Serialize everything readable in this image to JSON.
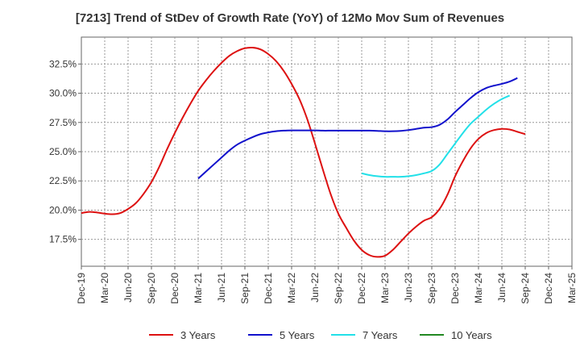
{
  "chart_data": {
    "type": "line",
    "title": "[7213]  Trend of StDev of Growth Rate (YoY) of 12Mo Mov Sum of Revenues",
    "xlabel": "",
    "ylabel": "",
    "ylim": [
      15.2,
      34.8
    ],
    "y_ticks": [
      17.5,
      20.0,
      22.5,
      25.0,
      27.5,
      30.0,
      32.5
    ],
    "y_tick_labels": [
      "17.5%",
      "20.0%",
      "22.5%",
      "25.0%",
      "27.5%",
      "30.0%",
      "32.5%"
    ],
    "x_tick_labels": [
      "Dec-19",
      "Mar-20",
      "Jun-20",
      "Sep-20",
      "Dec-20",
      "Mar-21",
      "Jun-21",
      "Sep-21",
      "Dec-21",
      "Mar-22",
      "Jun-22",
      "Sep-22",
      "Dec-22",
      "Mar-23",
      "Jun-23",
      "Sep-23",
      "Dec-23",
      "Mar-24",
      "Jun-24",
      "Sep-24",
      "Dec-24",
      "Mar-25"
    ],
    "grid": true,
    "legend_position": "bottom",
    "series": [
      {
        "name": "3 Years",
        "color": "#dd1111",
        "start_index": 0,
        "values": [
          19.75,
          19.85,
          19.8,
          19.7,
          19.65,
          19.75,
          20.1,
          20.6,
          21.4,
          22.4,
          23.7,
          25.2,
          26.6,
          27.9,
          29.1,
          30.2,
          31.1,
          31.9,
          32.6,
          33.2,
          33.6,
          33.85,
          33.9,
          33.75,
          33.35,
          32.75,
          31.9,
          30.8,
          29.5,
          27.8,
          25.7,
          23.5,
          21.4,
          19.7,
          18.5,
          17.4,
          16.6,
          16.15,
          16.0,
          16.1,
          16.6,
          17.3,
          18.0,
          18.6,
          19.1,
          19.4,
          20.1,
          21.3,
          22.9,
          24.2,
          25.3,
          26.1,
          26.6,
          26.85,
          26.95,
          26.9,
          26.7,
          26.5
        ]
      },
      {
        "name": "5 Years",
        "color": "#1111cc",
        "start_index": 15,
        "values": [
          22.7,
          23.3,
          23.9,
          24.5,
          25.1,
          25.6,
          25.95,
          26.25,
          26.5,
          26.65,
          26.75,
          26.8,
          26.82,
          26.82,
          26.82,
          26.82,
          26.8,
          26.8,
          26.8,
          26.8,
          26.8,
          26.8,
          26.8,
          26.78,
          26.75,
          26.75,
          26.78,
          26.85,
          26.95,
          27.05,
          27.1,
          27.3,
          27.75,
          28.4,
          29.0,
          29.6,
          30.1,
          30.45,
          30.65,
          30.8,
          31.0,
          31.3
        ]
      },
      {
        "name": "7 Years",
        "color": "#22e0e8",
        "start_index": 36,
        "values": [
          23.15,
          23.0,
          22.9,
          22.85,
          22.85,
          22.85,
          22.9,
          23.0,
          23.15,
          23.35,
          23.9,
          24.8,
          25.7,
          26.6,
          27.4,
          28.0,
          28.6,
          29.1,
          29.5,
          29.8
        ]
      },
      {
        "name": "10 Years",
        "color": "#228822",
        "start_index": 0,
        "values": []
      }
    ]
  }
}
